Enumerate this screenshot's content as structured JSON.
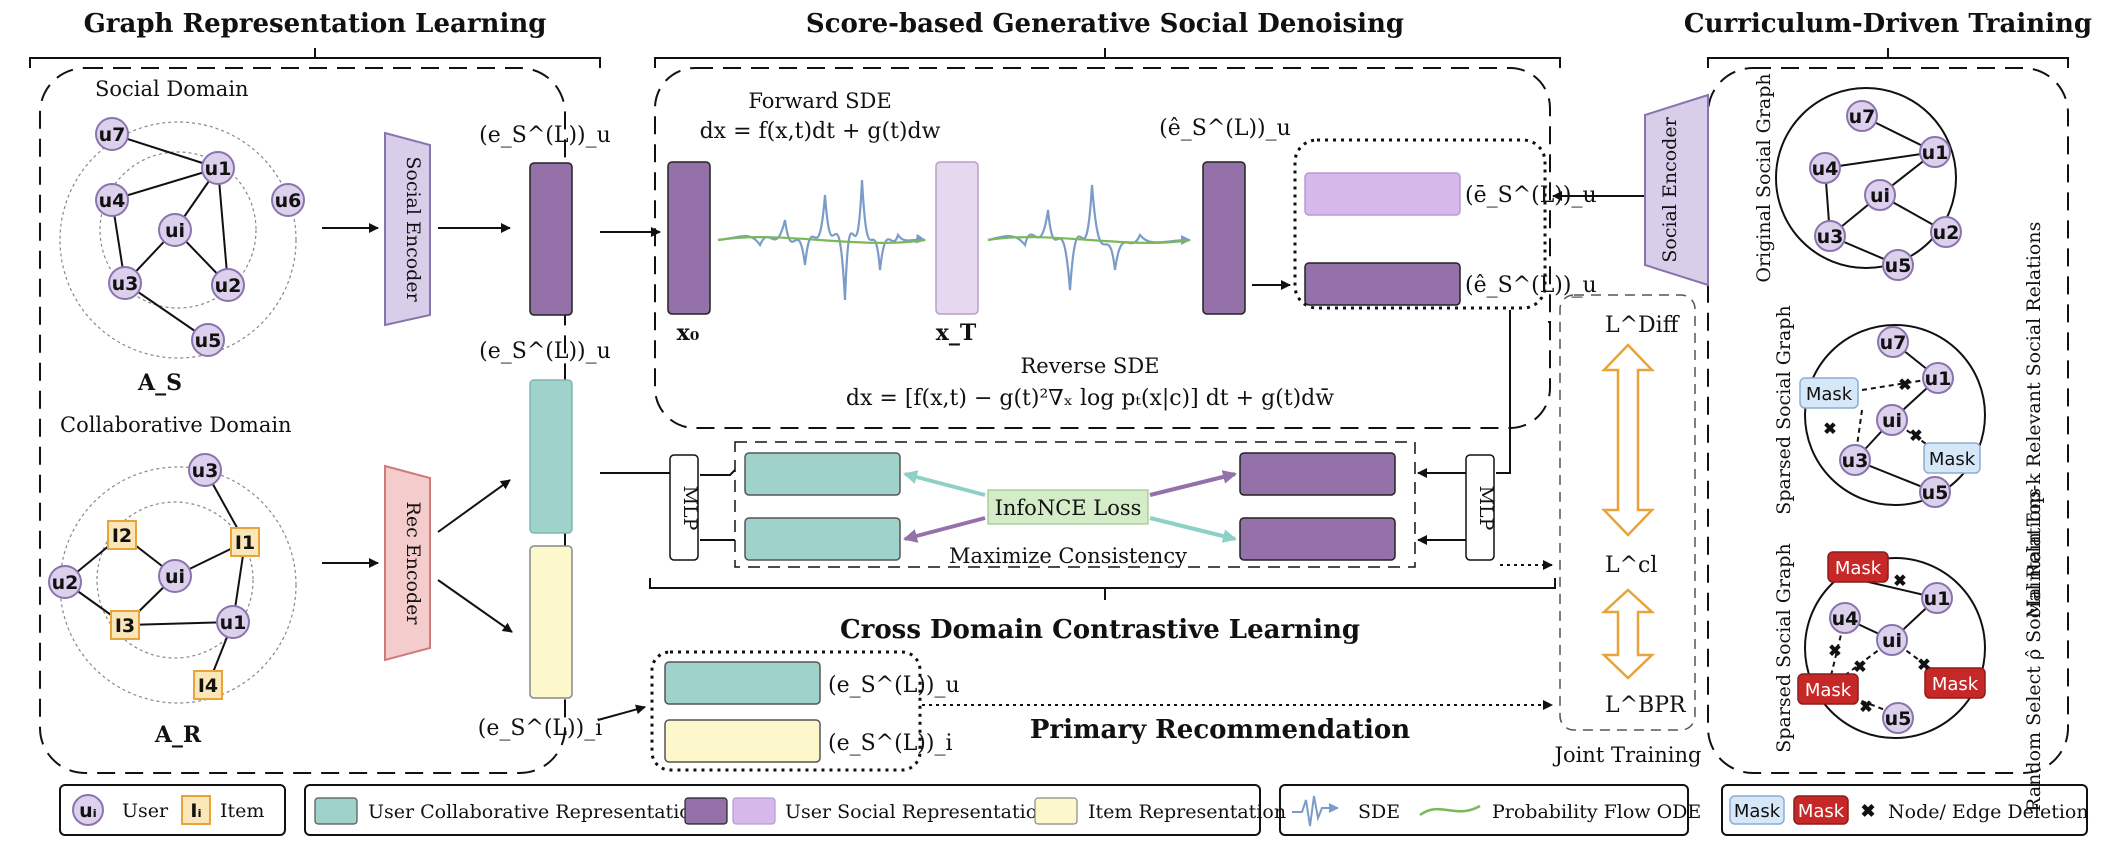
{
  "headers": {
    "graph": "Graph Representation Learning",
    "score": "Score-based Generative Social Denoising",
    "curriculum": "Curriculum-Driven Training",
    "contrastive": "Cross Domain Contrastive Learning",
    "primary": "Primary Recommendation",
    "joint": "Joint Training"
  },
  "domains": {
    "social": "Social Domain",
    "collab": "Collaborative Domain",
    "a_s": "A_S",
    "a_r": "A_R"
  },
  "encoders": {
    "social": "Social Encoder",
    "rec": "Rec Encoder"
  },
  "embeddings": {
    "e_s_u_top": "(e_S^(L))_u",
    "e_s_u_mid": "(e_S^(L))_u",
    "e_s_i_bot": "(e_S^(L))_i",
    "ehat_top": "(ê_S^(L))_u",
    "ebar": "(ē_S^(L))_u",
    "ehat_right": "(ê_S^(L))_u",
    "pr_u": "(e_S^(L))_u",
    "pr_i": "(e_S^(L))_i"
  },
  "sde": {
    "forward_label": "Forward SDE",
    "forward_eq": "dx = f(x,t)dt + g(t)dw",
    "reverse_label": "Reverse SDE",
    "reverse_eq": "dx = [f(x,t) − g(t)²∇ₓ log pₜ(x|c)] dt + g(t)dw̄",
    "x0": "x₀",
    "xT": "x_T"
  },
  "contrastive": {
    "mlp_left": "MLP",
    "mlp_right": "MLP",
    "infonce": "InfoNCE Loss",
    "maximize": "Maximize Consistency"
  },
  "losses": {
    "diff": "L^Diff",
    "cl": "L^cl",
    "bpr": "L^BPR"
  },
  "curriculum": {
    "original": "Original Social Graph",
    "sparsed1": "Sparsed Social Graph",
    "sparsed2": "Sparsed Social Graph",
    "topk": "Maintain Top-k Relevant Social Relations",
    "random": "Random Select ρ̂ Social Relations",
    "mask": "Mask"
  },
  "social_nodes": [
    "u7",
    "u1",
    "u4",
    "ui",
    "u6",
    "u3",
    "u2",
    "u5"
  ],
  "collab_nodes": [
    "u3",
    "I2",
    "I1",
    "u2",
    "ui",
    "I3",
    "u1",
    "I4"
  ],
  "legend": {
    "user_node": "uᵢ",
    "user": "User",
    "item_node": "Iᵢ",
    "item": "Item",
    "collab_rep": "User Collaborative Representation",
    "social_rep": "User Social Representation",
    "item_rep": "Item Representation",
    "sde": "SDE",
    "ode": "Probability Flow ODE",
    "mask": "Mask",
    "deletion": "Node/ Edge Deletion"
  },
  "colors": {
    "user_node": "#ddd0ec",
    "user_stroke": "#8a74ad",
    "item_node": "#fbe6b8",
    "item_stroke": "#e8a33a",
    "social_enc": "#d8ceea",
    "rec_enc": "#f4cccc",
    "teal": "#9fd2cb",
    "purple": "#9471a8",
    "light_purple": "#d7b8ea",
    "cream": "#fdf7cc",
    "mask_light": "#d6e8f7",
    "mask_red": "#c62828",
    "arrow_gold": "#e8a33a",
    "infonce_bg": "#d5ecc8"
  }
}
